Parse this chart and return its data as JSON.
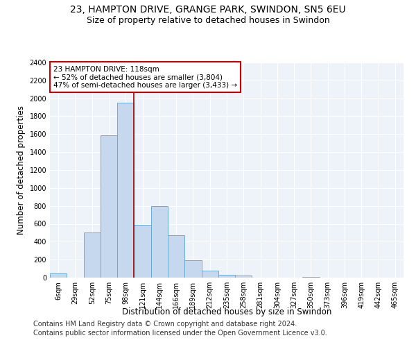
{
  "title1": "23, HAMPTON DRIVE, GRANGE PARK, SWINDON, SN5 6EU",
  "title2": "Size of property relative to detached houses in Swindon",
  "xlabel": "Distribution of detached houses by size in Swindon",
  "ylabel": "Number of detached properties",
  "categories": [
    "6sqm",
    "29sqm",
    "52sqm",
    "75sqm",
    "98sqm",
    "121sqm",
    "144sqm",
    "166sqm",
    "189sqm",
    "212sqm",
    "235sqm",
    "258sqm",
    "281sqm",
    "304sqm",
    "327sqm",
    "350sqm",
    "373sqm",
    "396sqm",
    "419sqm",
    "442sqm",
    "465sqm"
  ],
  "values": [
    50,
    0,
    500,
    1590,
    1950,
    590,
    800,
    470,
    195,
    80,
    30,
    20,
    0,
    0,
    0,
    10,
    0,
    0,
    0,
    0,
    0
  ],
  "bar_color": "#c5d8ee",
  "bar_edge_color": "#6aaad4",
  "vline_color": "#990000",
  "vline_x_index": 4.5,
  "annotation_text": "23 HAMPTON DRIVE: 118sqm\n← 52% of detached houses are smaller (3,804)\n47% of semi-detached houses are larger (3,433) →",
  "annotation_box_color": "#ffffff",
  "annotation_box_edge": "#cc0000",
  "ylim": [
    0,
    2400
  ],
  "yticks": [
    0,
    200,
    400,
    600,
    800,
    1000,
    1200,
    1400,
    1600,
    1800,
    2000,
    2200,
    2400
  ],
  "background_color": "#eef2f9",
  "grid_color": "#ffffff",
  "footer1": "Contains HM Land Registry data © Crown copyright and database right 2024.",
  "footer2": "Contains public sector information licensed under the Open Government Licence v3.0.",
  "title_fontsize": 10,
  "subtitle_fontsize": 9,
  "axis_label_fontsize": 8.5,
  "tick_fontsize": 7,
  "annotation_fontsize": 7.5,
  "footer_fontsize": 7
}
